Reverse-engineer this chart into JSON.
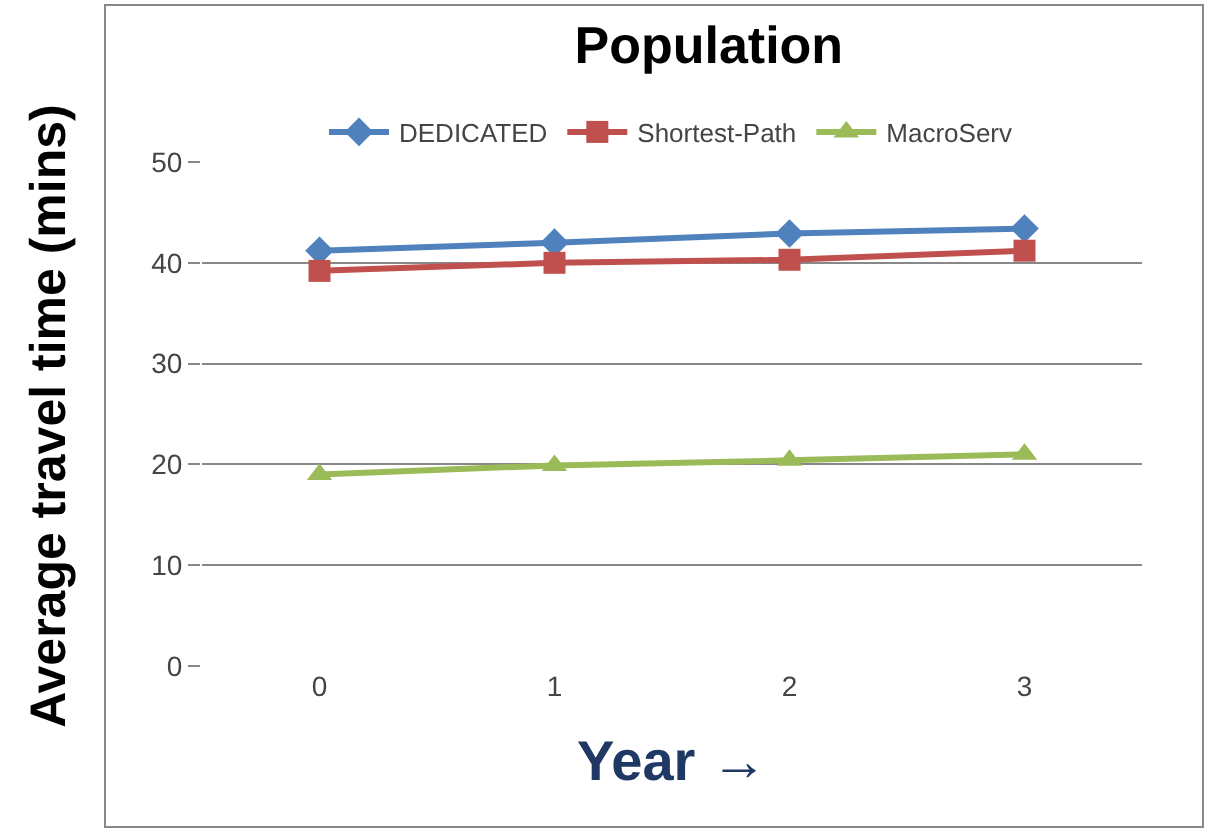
{
  "chart_data": {
    "type": "line",
    "title": "Population",
    "xlabel": "Year →",
    "ylabel": "Average travel time (mins)",
    "categories": [
      "0",
      "1",
      "2",
      "3"
    ],
    "series": [
      {
        "name": "DEDICATED",
        "color": "#4f81bd",
        "marker": "diamond",
        "values": [
          41.2,
          42.0,
          42.9,
          43.4
        ]
      },
      {
        "name": "Shortest-Path",
        "color": "#c0504d",
        "marker": "square",
        "values": [
          39.2,
          40.0,
          40.3,
          41.2
        ]
      },
      {
        "name": "MacroServ",
        "color": "#9bbb59",
        "marker": "triangle",
        "values": [
          19.0,
          19.9,
          20.4,
          21.0
        ]
      }
    ],
    "ylim": [
      0,
      50
    ],
    "yticks": [
      0,
      10,
      20,
      30,
      40,
      50
    ],
    "grid": "y",
    "legend": "top"
  }
}
